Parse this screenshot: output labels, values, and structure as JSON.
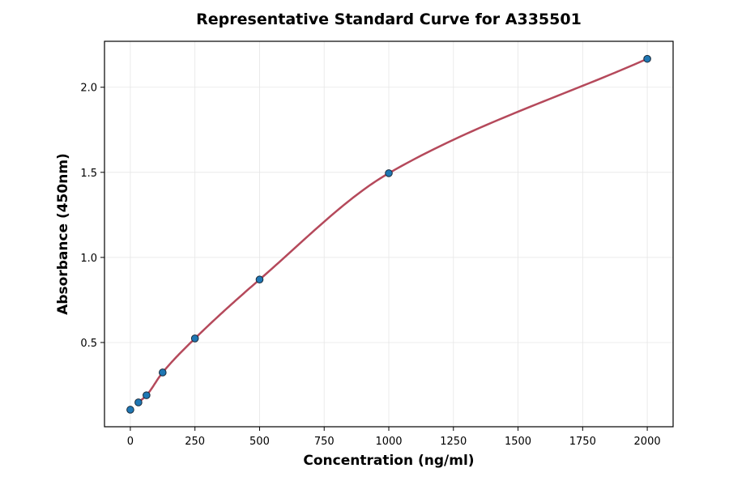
{
  "chart_data": {
    "type": "scatter",
    "title": "Representative Standard Curve for A335501",
    "xlabel": "Concentration (ng/ml)",
    "ylabel": "Absorbance (450nm)",
    "xlim": [
      -100,
      2100
    ],
    "ylim": [
      0.005,
      2.27
    ],
    "xticks": [
      0,
      250,
      500,
      750,
      1000,
      1250,
      1500,
      1750,
      2000
    ],
    "yticks": [
      0.5,
      1.0,
      1.5,
      2.0
    ],
    "xtick_labels": [
      "0",
      "250",
      "500",
      "750",
      "1000",
      "1250",
      "1500",
      "1750",
      "2000"
    ],
    "ytick_labels": [
      "0.5",
      "1.0",
      "1.5",
      "2.0"
    ],
    "grid": true,
    "points": {
      "x": [
        0,
        31.25,
        62.5,
        125,
        250,
        500,
        1000,
        2000
      ],
      "y": [
        0.105,
        0.148,
        0.19,
        0.324,
        0.524,
        0.87,
        1.495,
        2.167
      ]
    },
    "fit_curve": {
      "type": "line",
      "x_start": 31.25,
      "x_end": 2000
    },
    "colors": {
      "points": "#1f77b4",
      "point_edge": "#1a2a3a",
      "curve": "#b5495b"
    }
  }
}
